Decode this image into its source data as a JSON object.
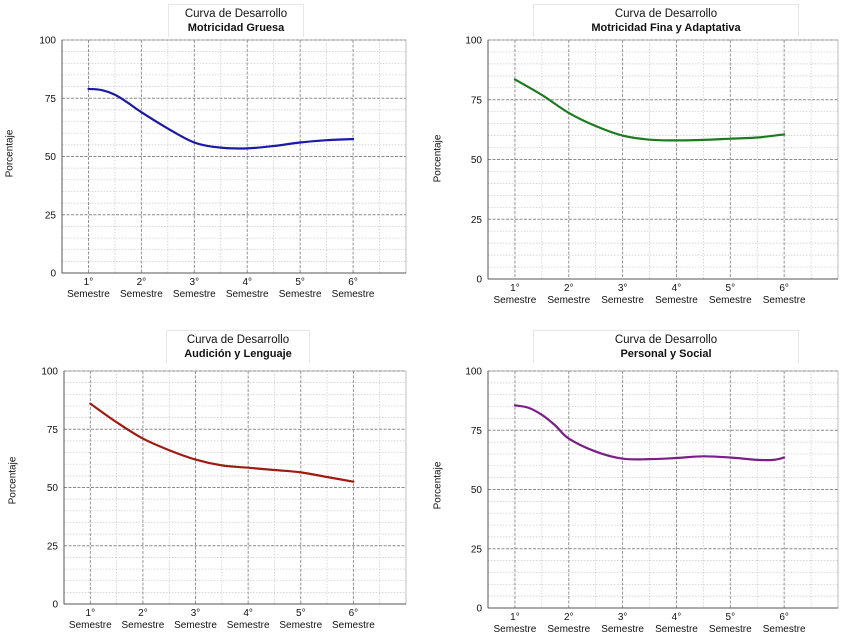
{
  "chart_data": [
    {
      "type": "line",
      "title": "Curva de Desarrollo",
      "subtitle": "Motricidad Gruesa",
      "ylabel": "Porcentaje",
      "xlabel": "",
      "ylim": [
        0,
        100
      ],
      "yticks": [
        "0",
        "25",
        "50",
        "75",
        "100"
      ],
      "categories": [
        "1° Semestre",
        "2° Semestre",
        "3° Semestre",
        "4° Semestre",
        "5° Semestre",
        "6° Semestre"
      ],
      "cat_top": [
        "1°",
        "2°",
        "3°",
        "4°",
        "5°",
        "6°"
      ],
      "cat_bottom": [
        "Semestre",
        "Semestre",
        "Semestre",
        "Semestre",
        "Semestre",
        "Semestre"
      ],
      "grid": true,
      "series": [
        {
          "name": "Motricidad Gruesa",
          "color": "#1a1aa6",
          "x": [
            1,
            1.25,
            1.5,
            1.75,
            2,
            2.5,
            3,
            3.5,
            4,
            4.5,
            5,
            5.5,
            6
          ],
          "values": [
            79,
            78.5,
            76.5,
            73,
            69,
            62,
            56,
            53.8,
            53.5,
            54.5,
            56,
            57,
            57.5
          ]
        }
      ]
    },
    {
      "type": "line",
      "title": "Curva de Desarrollo",
      "subtitle": "Motricidad Fina y Adaptativa",
      "ylabel": "Porcentaje",
      "xlabel": "",
      "ylim": [
        0,
        100
      ],
      "yticks": [
        "0",
        "25",
        "50",
        "75",
        "100"
      ],
      "categories": [
        "1° Semestre",
        "2° Semestre",
        "3° Semestre",
        "4° Semestre",
        "5° Semestre",
        "6° Semestre"
      ],
      "cat_top": [
        "1°",
        "2°",
        "3°",
        "4°",
        "5°",
        "6°"
      ],
      "cat_bottom": [
        "Semestre",
        "Semestre",
        "Semestre",
        "Semestre",
        "Semestre",
        "Semestre"
      ],
      "grid": true,
      "series": [
        {
          "name": "Motricidad Fina y Adaptativa",
          "color": "#1f7a1f",
          "x": [
            1,
            1.5,
            2,
            2.5,
            3,
            3.5,
            4,
            4.5,
            5,
            5.5,
            6
          ],
          "values": [
            83.5,
            77,
            69.5,
            64,
            60,
            58.3,
            58,
            58.2,
            58.7,
            59.2,
            60.5
          ]
        }
      ]
    },
    {
      "type": "line",
      "title": "Curva de Desarrollo",
      "subtitle": "Audición y Lenguaje",
      "ylabel": "Porcentaje",
      "xlabel": "",
      "ylim": [
        0,
        100
      ],
      "yticks": [
        "0",
        "25",
        "50",
        "75",
        "100"
      ],
      "categories": [
        "1° Semestre",
        "2° Semestre",
        "3° Semestre",
        "4° Semestre",
        "5° Semestre",
        "6° Semestre"
      ],
      "cat_top": [
        "1°",
        "2°",
        "3°",
        "4°",
        "5°",
        "6°"
      ],
      "cat_bottom": [
        "Semestre",
        "Semestre",
        "Semestre",
        "Semestre",
        "Semestre",
        "Semestre"
      ],
      "grid": true,
      "series": [
        {
          "name": "Audición y Lenguaje",
          "color": "#9e1b12",
          "x": [
            1,
            1.5,
            2,
            2.5,
            3,
            3.5,
            4,
            4.5,
            5,
            5.5,
            6
          ],
          "values": [
            86,
            78,
            71,
            66,
            62,
            59.5,
            58.5,
            57.5,
            56.5,
            54.5,
            52.5
          ]
        }
      ]
    },
    {
      "type": "line",
      "title": "Curva de Desarrollo",
      "subtitle": "Personal y Social",
      "ylabel": "Porcentaje",
      "xlabel": "",
      "ylim": [
        0,
        100
      ],
      "yticks": [
        "0",
        "25",
        "50",
        "75",
        "100"
      ],
      "categories": [
        "1° Semestre",
        "2° Semestre",
        "3° Semestre",
        "4° Semestre",
        "5° Semestre",
        "6° Semestre"
      ],
      "cat_top": [
        "1°",
        "2°",
        "3°",
        "4°",
        "5°",
        "6°"
      ],
      "cat_bottom": [
        "Semestre",
        "Semestre",
        "Semestre",
        "Semestre",
        "Semestre",
        "Semestre"
      ],
      "grid": true,
      "series": [
        {
          "name": "Personal y Social",
          "color": "#7a1f86",
          "x": [
            1,
            1.25,
            1.5,
            1.75,
            2,
            2.5,
            3,
            3.5,
            4,
            4.5,
            5,
            5.5,
            5.8,
            6
          ],
          "values": [
            85.5,
            84.5,
            81.5,
            77,
            71.5,
            66,
            63,
            62.8,
            63.3,
            64,
            63.5,
            62.5,
            62.5,
            63.5
          ]
        }
      ]
    }
  ]
}
